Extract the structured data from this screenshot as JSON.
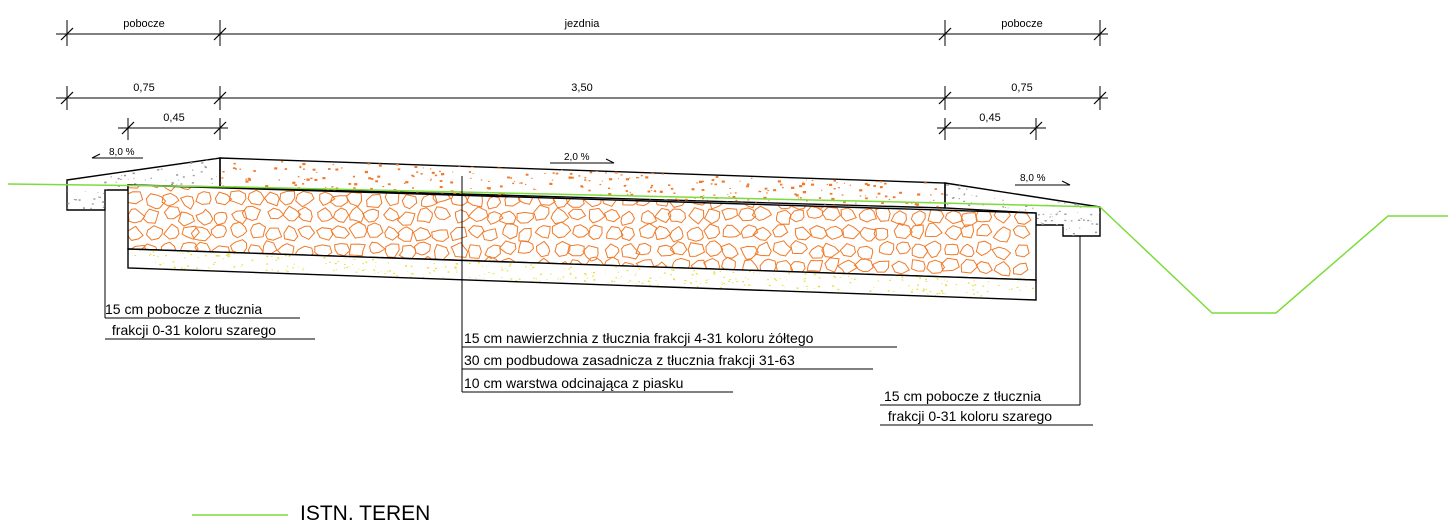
{
  "dimensions": {
    "top": [
      "pobocze",
      "jezdnia",
      "pobocze"
    ],
    "widths": [
      "0,75",
      "3,50",
      "0,75"
    ],
    "inner": [
      "0,45",
      "0,45"
    ]
  },
  "slopes": {
    "left": "8,0 %",
    "center": "2,0 %",
    "right": "8,0 %"
  },
  "labels": {
    "left_shoulder": [
      "15 cm pobocze z tłucznia",
      " frakcji 0-31 koloru szarego"
    ],
    "layers": [
      "15 cm nawierzchnia z tłucznia frakcji 4-31 koloru żółtego",
      "30 cm podbudowa zasadnicza z tłucznia frakcji 31-63",
      "10 cm warstwa odcinająca z piasku"
    ],
    "right_shoulder": [
      "15 cm pobocze z tłucznia",
      " frakcji 0-31 koloru szarego"
    ]
  },
  "legend": {
    "terrain": "ISTN. TEREN"
  },
  "colors": {
    "terrain": "#7ddc3c",
    "aggregate": "#f07a28",
    "sand": "#e6dc3c",
    "shoulder": "#9a9a9a"
  }
}
